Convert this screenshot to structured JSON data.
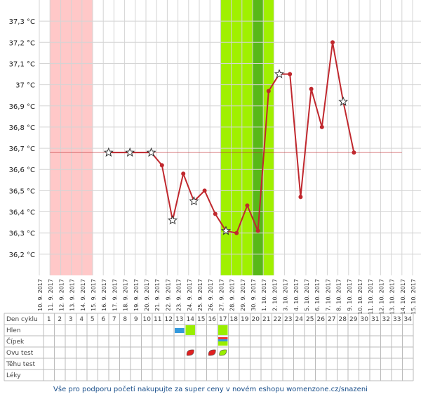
{
  "chart_data": {
    "type": "line",
    "title": "",
    "xlabel": "",
    "ylabel": "",
    "ylim": [
      36.1,
      37.4
    ],
    "y_ticks": [
      "36,2 °C",
      "36,3 °C",
      "36,4 °C",
      "36,5 °C",
      "36,6 °C",
      "36,7 °C",
      "36,8 °C",
      "36,9 °C",
      "37 °C",
      "37,1 °C",
      "37,2 °C",
      "37,3 °C"
    ],
    "y_tick_values": [
      36.2,
      36.3,
      36.4,
      36.5,
      36.6,
      36.7,
      36.8,
      36.9,
      37.0,
      37.1,
      37.2,
      37.3
    ],
    "x_dates": [
      "10. 9. 2017",
      "11. 9. 2017",
      "12. 9. 2017",
      "13. 9. 2017",
      "14. 9. 2017",
      "15. 9. 2017",
      "16. 9. 2017",
      "17. 9. 2017",
      "18. 9. 2017",
      "19. 9. 2017",
      "20. 9. 2017",
      "21. 9. 2017",
      "22. 9. 2017",
      "23. 9. 2017",
      "24. 9. 2017",
      "25. 9. 2017",
      "26. 9. 2017",
      "27. 9. 2017",
      "28. 9. 2017",
      "29. 9. 2017",
      "30. 9. 2017",
      "1. 10. 2017",
      "2. 10. 2017",
      "3. 10. 2017",
      "4. 10. 2017",
      "5. 10. 2017",
      "6. 10. 2017",
      "7. 10. 2017",
      "8. 10. 2017",
      "9. 10. 2017",
      "10. 10. 2017",
      "11. 10. 2017",
      "12. 10. 2017",
      "13. 10. 2017",
      "14. 10. 2017",
      "15. 10. 2017"
    ],
    "coverline": 36.68,
    "series": [
      {
        "color": "#c0282e",
        "points": [
          {
            "x": "16. 9. 2017",
            "y": 36.68,
            "star": true
          },
          {
            "x": "18. 9. 2017",
            "y": 36.68,
            "star": true
          },
          {
            "x": "20. 9. 2017",
            "y": 36.68,
            "star": true
          },
          {
            "x": "21. 9. 2017",
            "y": 36.62
          },
          {
            "x": "22. 9. 2017",
            "y": 36.36,
            "star": true
          },
          {
            "x": "23. 9. 2017",
            "y": 36.58
          },
          {
            "x": "24. 9. 2017",
            "y": 36.45,
            "star": true
          },
          {
            "x": "25. 9. 2017",
            "y": 36.5
          },
          {
            "x": "26. 9. 2017",
            "y": 36.39
          },
          {
            "x": "27. 9. 2017",
            "y": 36.31,
            "star": true
          },
          {
            "x": "28. 9. 2017",
            "y": 36.3
          },
          {
            "x": "29. 9. 2017",
            "y": 36.43
          },
          {
            "x": "30. 9. 2017",
            "y": 36.31
          },
          {
            "x": "1. 10. 2017",
            "y": 36.97
          },
          {
            "x": "2. 10. 2017",
            "y": 37.05,
            "star": true
          },
          {
            "x": "3. 10. 2017",
            "y": 37.05
          },
          {
            "x": "4. 10. 2017",
            "y": 36.47
          },
          {
            "x": "5. 10. 2017",
            "y": 36.98
          },
          {
            "x": "6. 10. 2017",
            "y": 36.8
          },
          {
            "x": "7. 10. 2017",
            "y": 37.2
          },
          {
            "x": "8. 10. 2017",
            "y": 36.92,
            "star": true
          },
          {
            "x": "9. 10. 2017",
            "y": 36.68
          }
        ]
      }
    ],
    "bands": [
      {
        "label": "menstruation",
        "from": "11. 9. 2017",
        "to": "14. 9. 2017",
        "color": "#ffc8c8"
      },
      {
        "label": "fertile",
        "from": "27. 9. 2017",
        "to": "1. 10. 2017",
        "color": "#a0f000"
      },
      {
        "label": "ovulation",
        "from": "30. 9. 2017",
        "to": "30. 9. 2017",
        "color": "#58b818"
      }
    ],
    "grid": true,
    "table": {
      "row_labels": [
        "Den cyklu",
        "Hlen",
        "Čípek",
        "Ovu test",
        "Těhu test",
        "Léky"
      ],
      "cycle_days": [
        "1",
        "2",
        "3",
        "4",
        "5",
        "6",
        "7",
        "8",
        "9",
        "10",
        "11",
        "12",
        "13",
        "14",
        "15",
        "16",
        "17",
        "18",
        "19",
        "20",
        "21",
        "22",
        "23",
        "24",
        "25",
        "26",
        "27",
        "28",
        "29",
        "30",
        "31",
        "32",
        "33",
        "34"
      ],
      "markers": [
        {
          "row": "Hlen",
          "day": 13,
          "symbol": "blue-square"
        },
        {
          "row": "Hlen",
          "day": 14,
          "symbol": "green-square"
        },
        {
          "row": "Hlen",
          "day": 17,
          "symbol": "green-square"
        },
        {
          "row": "Čípek",
          "day": 17,
          "symbol": "multicolor-bars"
        },
        {
          "row": "Ovu test",
          "day": 14,
          "symbol": "red-leaf"
        },
        {
          "row": "Ovu test",
          "day": 16,
          "symbol": "red-leaf"
        },
        {
          "row": "Ovu test",
          "day": 17,
          "symbol": "green-leaf"
        }
      ]
    }
  },
  "footer": {
    "text": "Vše pro podporu početí nakupujte za super ceny v novém eshopu womenzone.cz/snazeni"
  }
}
